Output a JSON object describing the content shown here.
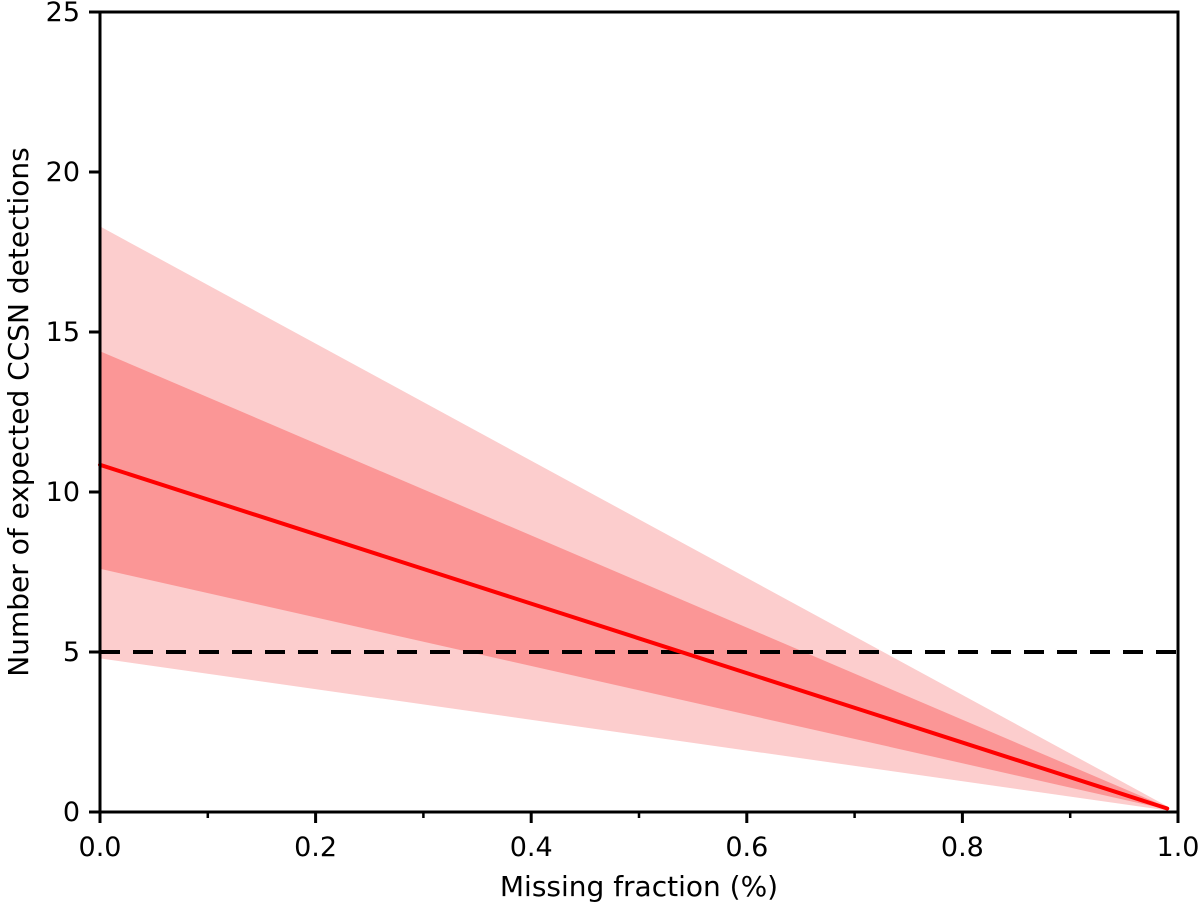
{
  "figure": {
    "kind": "matplotlib-style line plot with confidence bands",
    "background": "#ffffff"
  },
  "chart_data": {
    "type": "line",
    "title": "",
    "xlabel": "Missing fraction (%)",
    "ylabel": "Number of expected CCSN detections",
    "xlim": [
      0.0,
      1.0
    ],
    "ylim": [
      0,
      25
    ],
    "grid": false,
    "legend": false,
    "x_ticks": {
      "major": [
        0.0,
        0.2,
        0.4,
        0.6,
        0.8,
        1.0
      ],
      "major_labels": [
        "0.0",
        "0.2",
        "0.4",
        "0.6",
        "0.8",
        "1.0"
      ],
      "minor": [
        0.1,
        0.3,
        0.5,
        0.7,
        0.9
      ]
    },
    "y_ticks": {
      "major": [
        0,
        5,
        10,
        15,
        20,
        25
      ],
      "major_labels": [
        "0",
        "5",
        "10",
        "15",
        "20",
        "25"
      ],
      "minor": []
    },
    "series": [
      {
        "name": "2-sigma-band",
        "type": "band",
        "color": "#fccdcd",
        "x": [
          0.0,
          0.99
        ],
        "y_upper": [
          18.3,
          0.18
        ],
        "y_lower": [
          4.8,
          0.05
        ]
      },
      {
        "name": "1-sigma-band",
        "type": "band",
        "color": "#fb9696",
        "x": [
          0.0,
          0.99
        ],
        "y_upper": [
          14.4,
          0.15
        ],
        "y_lower": [
          7.6,
          0.08
        ]
      },
      {
        "name": "detection-threshold",
        "type": "hline",
        "color": "#000000",
        "style": "dashed",
        "dash": [
          20,
          13
        ],
        "width": 4,
        "y": 5,
        "x_range": [
          0.0,
          1.0
        ]
      },
      {
        "name": "median-expected-detections",
        "type": "line",
        "color": "#ff0000",
        "width": 4,
        "x": [
          0.0,
          0.99
        ],
        "y": [
          10.85,
          0.11
        ]
      }
    ],
    "annotations": []
  }
}
